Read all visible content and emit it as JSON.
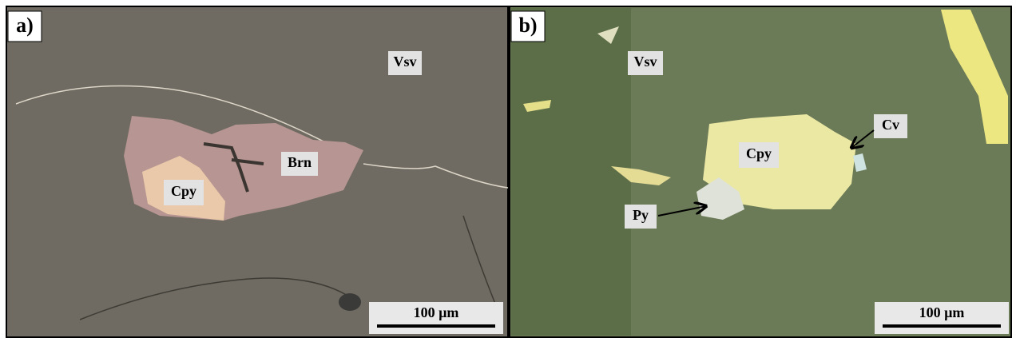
{
  "panels": [
    {
      "label": "a)",
      "annotations": [
        "Vsv",
        "Brn",
        "Cpy"
      ],
      "scale_bar": "100 µm"
    },
    {
      "label": "b)",
      "annotations": [
        "Vsv",
        "Cpy",
        "Cv",
        "Py"
      ],
      "scale_bar": "100 µm"
    }
  ]
}
